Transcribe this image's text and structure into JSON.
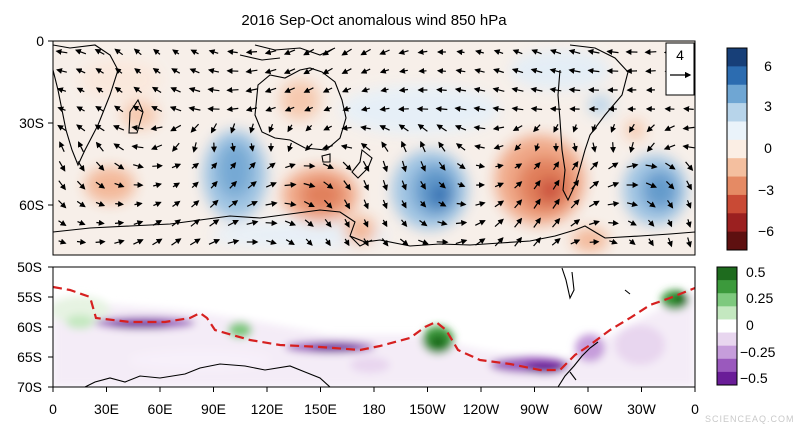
{
  "top_panel": {
    "title": "2016 Sep-Oct anomalous wind 850 hPa",
    "y_ticks": [
      "0",
      "30S",
      "60S"
    ],
    "reference_vector": "4",
    "colorbar_ticks": [
      "6",
      "3",
      "0",
      "−3",
      "−6"
    ],
    "colorbar_colors": [
      "#173f78",
      "#2c6cb0",
      "#6fa6d3",
      "#b7d4ea",
      "#eaf3fa",
      "#fbeee4",
      "#f4bf9f",
      "#e58a64",
      "#c94a35",
      "#9b2020",
      "#5e1010"
    ]
  },
  "bottom_panel": {
    "y_ticks": [
      "50S",
      "55S",
      "60S",
      "65S",
      "70S"
    ],
    "colorbar_ticks": [
      "0.5",
      "0.25",
      "0",
      "−0.25",
      "−0.5"
    ],
    "colorbar_colors": [
      "#1e6b1e",
      "#3c9a3c",
      "#7ec97e",
      "#c4e8c0",
      "#ffffff",
      "#e8d6ef",
      "#c69ddb",
      "#9a59bd",
      "#6a1d98"
    ]
  },
  "x_axis": {
    "ticks": [
      "0",
      "30E",
      "60E",
      "90E",
      "120E",
      "150E",
      "180",
      "150W",
      "120W",
      "90W",
      "60W",
      "30W",
      "0"
    ]
  },
  "watermark": "SCIENCEAQ.COM"
}
